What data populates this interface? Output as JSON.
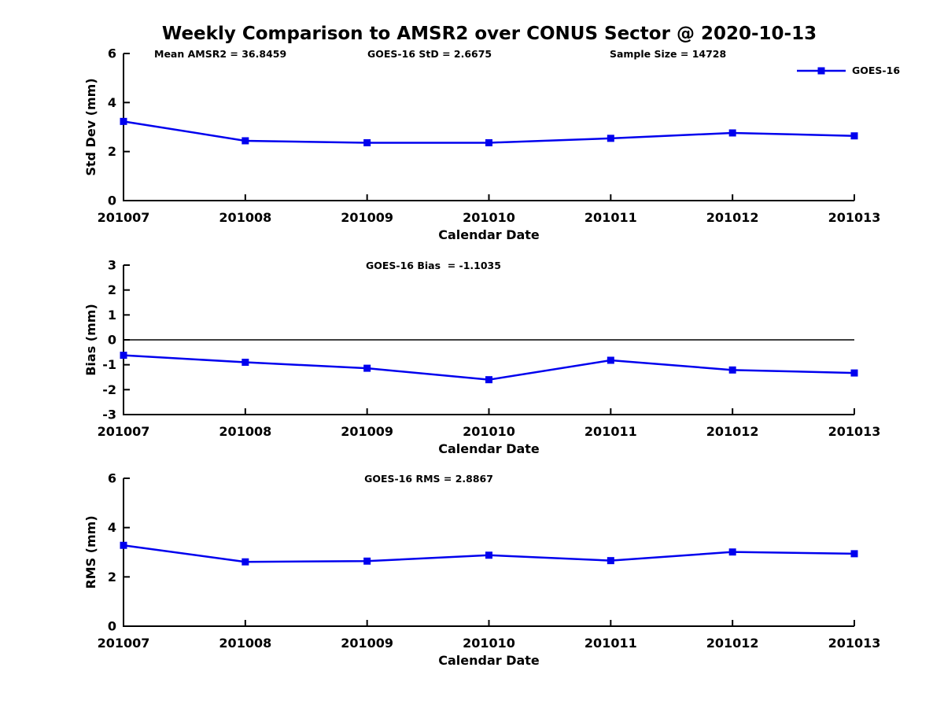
{
  "page": {
    "background": "#ffffff",
    "text_color": "#000000"
  },
  "title": "Weekly Comparison to AMSR2 over CONUS Sector @ 2020-10-13",
  "legend": {
    "label": "GOES-16",
    "line_color": "#0000EE",
    "position": "top-right"
  },
  "chart_data": [
    {
      "type": "line",
      "name": "std-dev",
      "annotations": [
        "Mean AMSR2 = 36.8459",
        "GOES-16 StD = 2.6675",
        "Sample Size = 14728"
      ],
      "categories": [
        "201007",
        "201008",
        "201009",
        "201010",
        "201011",
        "201012",
        "201013"
      ],
      "series": [
        {
          "name": "GOES-16",
          "values": [
            3.23,
            2.44,
            2.36,
            2.36,
            2.54,
            2.76,
            2.64
          ]
        }
      ],
      "xlabel": "Calendar Date",
      "ylabel": "Std Dev (mm)",
      "ylim": [
        0,
        6
      ],
      "yticks": [
        0,
        2,
        4,
        6
      ],
      "grid": false,
      "zero_line": false,
      "legend_visible": true,
      "line_color": "#0000EE",
      "marker": "square"
    },
    {
      "type": "line",
      "name": "bias",
      "annotations": [
        "GOES-16 Bias  = -1.1035"
      ],
      "categories": [
        "201007",
        "201008",
        "201009",
        "201010",
        "201011",
        "201012",
        "201013"
      ],
      "series": [
        {
          "name": "GOES-16",
          "values": [
            -0.62,
            -0.9,
            -1.14,
            -1.6,
            -0.82,
            -1.21,
            -1.33
          ]
        }
      ],
      "xlabel": "Calendar Date",
      "ylabel": "Bias (mm)",
      "ylim": [
        -3,
        3
      ],
      "yticks": [
        -3,
        -2,
        -1,
        0,
        1,
        2,
        3
      ],
      "grid": false,
      "zero_line": true,
      "legend_visible": false,
      "line_color": "#0000EE",
      "marker": "square"
    },
    {
      "type": "line",
      "name": "rms",
      "annotations": [
        "GOES-16 RMS = 2.8867"
      ],
      "categories": [
        "201007",
        "201008",
        "201009",
        "201010",
        "201011",
        "201012",
        "201013"
      ],
      "series": [
        {
          "name": "GOES-16",
          "values": [
            3.28,
            2.61,
            2.64,
            2.88,
            2.66,
            3.01,
            2.94
          ]
        }
      ],
      "xlabel": "Calendar Date",
      "ylabel": "RMS (mm)",
      "ylim": [
        0,
        6
      ],
      "yticks": [
        0,
        2,
        4,
        6
      ],
      "grid": false,
      "zero_line": false,
      "legend_visible": false,
      "line_color": "#0000EE",
      "marker": "square"
    }
  ]
}
